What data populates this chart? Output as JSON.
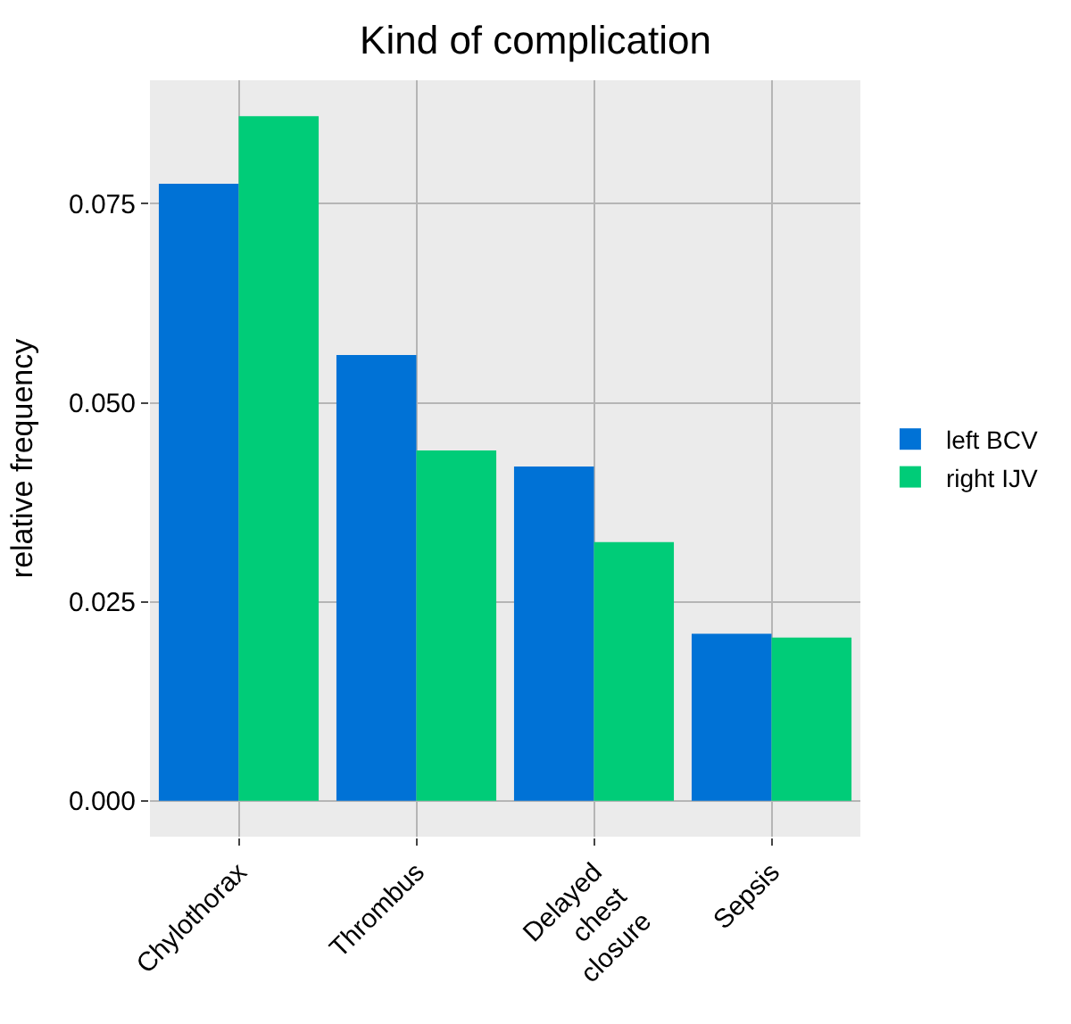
{
  "chart_data": {
    "type": "bar",
    "title": "Kind of complication",
    "ylabel": "relative frequency",
    "categories": [
      "Chylothorax",
      "Thrombus",
      "Delayed chest closure",
      "Sepsis"
    ],
    "series": [
      {
        "name": "left BCV",
        "color": "#0072d6",
        "values": [
          0.0775,
          0.056,
          0.042,
          0.021
        ]
      },
      {
        "name": "right IJV",
        "color": "#00cc78",
        "values": [
          0.086,
          0.044,
          0.0325,
          0.0205
        ]
      }
    ],
    "ylim": [
      -0.0045,
      0.0905
    ],
    "yticks": [
      {
        "value": 0,
        "label": "0.000"
      },
      {
        "value": 0.025,
        "label": "0.025"
      },
      {
        "value": 0.05,
        "label": "0.050"
      },
      {
        "value": 0.075,
        "label": "0.075"
      }
    ],
    "grid": true,
    "legend": "right"
  }
}
